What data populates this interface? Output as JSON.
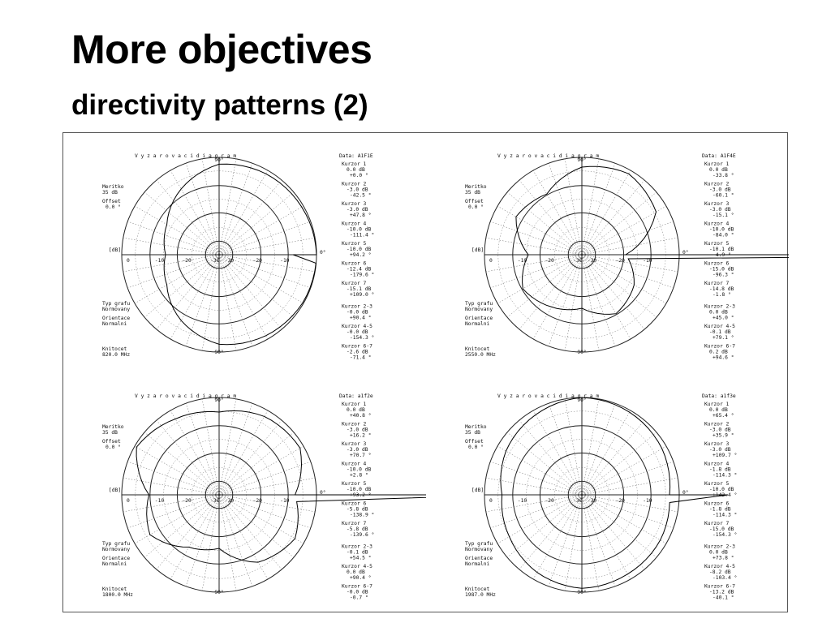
{
  "slide": {
    "title": "More objectives",
    "subtitle": "directivity patterns (2)"
  },
  "panels": [
    {
      "heading": "V y z a r o v a c i        d i a g r a m",
      "data_label": "Data: A1F1E",
      "meritko": [
        "Meritko",
        "35 dB"
      ],
      "offset": [
        "Offset",
        "0.0 °"
      ],
      "db_label": "[dB]",
      "typ": [
        "Typ grafu",
        "Normovany"
      ],
      "orient": [
        "Orientace",
        "Normalni"
      ],
      "knitocet": [
        "Knitocet",
        "820.0 MHz"
      ],
      "cursors": [
        [
          "Kurzor 1",
          "0.0 dB",
          "+0.0 °"
        ],
        [
          "Kurzor 2",
          "-3.0 dB",
          "-42.5 °"
        ],
        [
          "Kurzor 3",
          "-3.0 dB",
          "+47.8 °"
        ],
        [
          "Kurzor 4",
          "-10.0 dB",
          "-111.4 °"
        ],
        [
          "Kurzor 5",
          "-10.0 dB",
          "+94.2 °"
        ],
        [
          "Kurzor 6",
          "-12.4 dB",
          "-179.6 °"
        ],
        [
          "Kurzor 7",
          "-15.1 dB",
          "+109.0 °"
        ],
        [
          "Kurzor 2-3",
          "-0.0 dB",
          "+90.4 °"
        ],
        [
          "Kurzor 4-5",
          "-0.0 dB",
          "-154.3 °"
        ],
        [
          "Kurzor 6-7",
          "-2.6 dB",
          "-71.4 °"
        ]
      ]
    },
    {
      "heading": "V y z a r o v a c i        d i a g r a m",
      "data_label": "Data: A1F4E",
      "meritko": [
        "Meritko",
        "35 dB"
      ],
      "offset": [
        "Offset",
        "0.0 °"
      ],
      "db_label": "[dB]",
      "typ": [
        "Typ grafu",
        "Normovany"
      ],
      "orient": [
        "Orientace",
        "Normalni"
      ],
      "knitocet": [
        "Knitocet",
        "2550.0 MHz"
      ],
      "cursors": [
        [
          "Kurzor 1",
          "0.0 dB",
          "-33.8 °"
        ],
        [
          "Kurzor 2",
          "-3.0 dB",
          "-60.1 °"
        ],
        [
          "Kurzor 3",
          "-3.0 dB",
          "-15.1 °"
        ],
        [
          "Kurzor 4",
          "-10.0 dB",
          "-84.0 °"
        ],
        [
          "Kurzor 5",
          "-10.1 dB",
          "-4.9 °"
        ],
        [
          "Kurzor 6",
          "-15.0 dB",
          "-96.3 °"
        ],
        [
          "Kurzor 7",
          "-14.8 dB",
          "-1.8 °"
        ],
        [
          "Kurzor 2-3",
          "0.0 dB",
          "+45.0 °"
        ],
        [
          "Kurzor 4-5",
          "-0.1 dB",
          "+79.1 °"
        ],
        [
          "Kurzor 6-7",
          "0.2 dB",
          "+94.6 °"
        ]
      ]
    },
    {
      "heading": "V y z a r o v a c i        d i a g r a m",
      "data_label": "Data: a1f2e",
      "meritko": [
        "Meritko",
        "35 dB"
      ],
      "offset": [
        "Offset",
        "0.0 °"
      ],
      "db_label": "[dB]",
      "typ": [
        "Typ grafu",
        "Normovany"
      ],
      "orient": [
        "Orientace",
        "Normalni"
      ],
      "knitocet": [
        "Knitocet",
        "1800.0 MHz"
      ],
      "cursors": [
        [
          "Kurzor 1",
          "0.0 dB",
          "+40.8 °"
        ],
        [
          "Kurzor 2",
          "-3.0 dB",
          "+16.2 °"
        ],
        [
          "Kurzor 3",
          "-3.0 dB",
          "+70.7 °"
        ],
        [
          "Kurzor 4",
          "-10.0 dB",
          "+2.8 °"
        ],
        [
          "Kurzor 5",
          "-10.0 dB",
          "+93.2 °"
        ],
        [
          "Kurzor 6",
          "-5.8 dB",
          "-138.9 °"
        ],
        [
          "Kurzor 7",
          "-5.8 dB",
          "-139.6 °"
        ],
        [
          "Kurzor 2-3",
          "-0.1 dB",
          "+54.5 °"
        ],
        [
          "Kurzor 4-5",
          "0.0 dB",
          "+90.4 °"
        ],
        [
          "Kurzor 6-7",
          "-0.0 dB",
          "-0.7 °"
        ]
      ]
    },
    {
      "heading": "V y z a r o v a c i        d i a g r a m",
      "data_label": "Data: a1f3e",
      "meritko": [
        "Meritko",
        "35 dB"
      ],
      "offset": [
        "Offset",
        "0.0 °"
      ],
      "db_label": "[dB]",
      "typ": [
        "Typ grafu",
        "Normovany"
      ],
      "orient": [
        "Orientace",
        "Normalni"
      ],
      "knitocet": [
        "Knitocet",
        "1987.0 MHz"
      ],
      "cursors": [
        [
          "Kurzor 1",
          "0.0 dB",
          "+65.4 °"
        ],
        [
          "Kurzor 2",
          "-3.0 dB",
          "+35.9 °"
        ],
        [
          "Kurzor 3",
          "-3.0 dB",
          "+109.7 °"
        ],
        [
          "Kurzor 4",
          "-1.8 dB",
          "-114.3 °"
        ],
        [
          "Kurzor 5",
          "-10.0 dB",
          "+142.4 °"
        ],
        [
          "Kurzor 6",
          "-1.8 dB",
          "-114.3 °"
        ],
        [
          "Kurzor 7",
          "-15.0 dB",
          "-154.3 °"
        ],
        [
          "Kurzor 2-3",
          "0.0 dB",
          "+73.8 °"
        ],
        [
          "Kurzor 4-5",
          "-8.2 dB",
          "-103.4 °"
        ],
        [
          "Kurzor 6-7",
          "-13.2 dB",
          "-40.1 °"
        ]
      ]
    }
  ],
  "polar_axis": {
    "ring_labels": [
      "0",
      "-10",
      "-20",
      "-30"
    ],
    "angle_labels": [
      "90°",
      "0°",
      "90°"
    ]
  }
}
